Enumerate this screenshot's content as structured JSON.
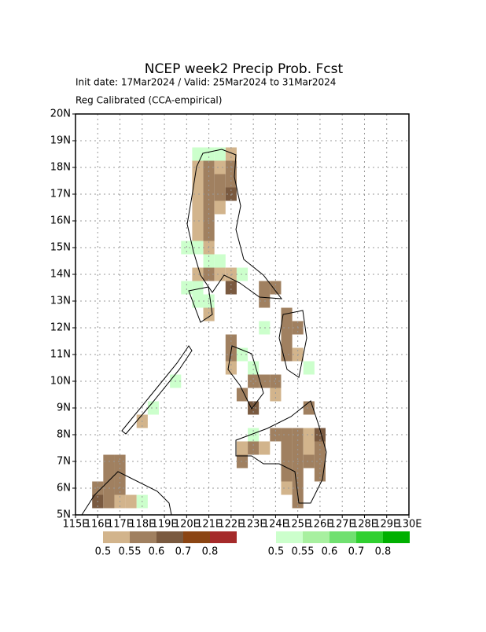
{
  "chart_data": {
    "type": "map",
    "title": "NCEP week2 Precip Prob. Fcst",
    "subtitle": "Init date: 17Mar2024 / Valid: 25Mar2024 to 31Mar2024",
    "note": "Reg Calibrated (CCA-empirical)",
    "xlim": [
      115,
      130
    ],
    "ylim": [
      5,
      20
    ],
    "xticks": [
      {
        "value": 115,
        "label": "115E"
      },
      {
        "value": 116,
        "label": "116E"
      },
      {
        "value": 117,
        "label": "117E"
      },
      {
        "value": 118,
        "label": "118E"
      },
      {
        "value": 119,
        "label": "119E"
      },
      {
        "value": 120,
        "label": "120E"
      },
      {
        "value": 121,
        "label": "121E"
      },
      {
        "value": 122,
        "label": "122E"
      },
      {
        "value": 123,
        "label": "123E"
      },
      {
        "value": 124,
        "label": "124E"
      },
      {
        "value": 125,
        "label": "125E"
      },
      {
        "value": 126,
        "label": "126E"
      },
      {
        "value": 127,
        "label": "127E"
      },
      {
        "value": 128,
        "label": "128E"
      },
      {
        "value": 129,
        "label": "129E"
      },
      {
        "value": 130,
        "label": "130E"
      }
    ],
    "yticks": [
      {
        "value": 5,
        "label": "5N"
      },
      {
        "value": 6,
        "label": "6N"
      },
      {
        "value": 7,
        "label": "7N"
      },
      {
        "value": 8,
        "label": "8N"
      },
      {
        "value": 9,
        "label": "9N"
      },
      {
        "value": 10,
        "label": "10N"
      },
      {
        "value": 11,
        "label": "11N"
      },
      {
        "value": 12,
        "label": "12N"
      },
      {
        "value": 13,
        "label": "13N"
      },
      {
        "value": 14,
        "label": "14N"
      },
      {
        "value": 15,
        "label": "15N"
      },
      {
        "value": 16,
        "label": "16N"
      },
      {
        "value": 17,
        "label": "17N"
      },
      {
        "value": 18,
        "label": "18N"
      },
      {
        "value": 19,
        "label": "19N"
      },
      {
        "value": 20,
        "label": "20N"
      }
    ],
    "grid": true,
    "dry_legend": {
      "levels": [
        0.5,
        0.55,
        0.6,
        0.7,
        0.8
      ],
      "colors": [
        "#d2b48c",
        "#a08060",
        "#7a5a40",
        "#8b4513",
        "#a52a2a"
      ]
    },
    "wet_legend": {
      "levels": [
        0.5,
        0.55,
        0.6,
        0.7,
        0.8
      ],
      "colors": [
        "#ccffcc",
        "#a8f0a0",
        "#70e070",
        "#30d030",
        "#00b000"
      ]
    },
    "dry_cells": [
      [
        122,
        18.5,
        0.5
      ],
      [
        120.5,
        18,
        0.5
      ],
      [
        121,
        18,
        0.55
      ],
      [
        121.5,
        18,
        0.5
      ],
      [
        122,
        18,
        0.55
      ],
      [
        120.5,
        17.5,
        0.5
      ],
      [
        121,
        17.5,
        0.55
      ],
      [
        121.5,
        17.5,
        0.55
      ],
      [
        122,
        17.5,
        0.55
      ],
      [
        120.5,
        17,
        0.5
      ],
      [
        121,
        17,
        0.55
      ],
      [
        121.5,
        17,
        0.55
      ],
      [
        122,
        17,
        0.6
      ],
      [
        120.5,
        16.5,
        0.5
      ],
      [
        121,
        16.5,
        0.55
      ],
      [
        121.5,
        16.5,
        0.5
      ],
      [
        120.5,
        16,
        0.5
      ],
      [
        121,
        16,
        0.55
      ],
      [
        120.5,
        15.5,
        0.5
      ],
      [
        121,
        15.5,
        0.55
      ],
      [
        121,
        15,
        0.5
      ],
      [
        120.5,
        14,
        0.5
      ],
      [
        121,
        14,
        0.55
      ],
      [
        121.5,
        14,
        0.5
      ],
      [
        122,
        14,
        0.5
      ],
      [
        122,
        13.5,
        0.6
      ],
      [
        123.5,
        13.5,
        0.55
      ],
      [
        124,
        13.5,
        0.55
      ],
      [
        123.5,
        13,
        0.55
      ],
      [
        121,
        12.5,
        0.5
      ],
      [
        124.5,
        12.5,
        0.55
      ],
      [
        124.5,
        12,
        0.55
      ],
      [
        125,
        12,
        0.55
      ],
      [
        122,
        11.5,
        0.55
      ],
      [
        122,
        11,
        0.55
      ],
      [
        122,
        10.5,
        0.5
      ],
      [
        124.5,
        11.5,
        0.55
      ],
      [
        124.5,
        11,
        0.55
      ],
      [
        125,
        11,
        0.5
      ],
      [
        123,
        10,
        0.55
      ],
      [
        123.5,
        10,
        0.55
      ],
      [
        124,
        10,
        0.55
      ],
      [
        122.5,
        9.5,
        0.55
      ],
      [
        124,
        9.5,
        0.5
      ],
      [
        123,
        9,
        0.6
      ],
      [
        125.5,
        9,
        0.55
      ],
      [
        124,
        8,
        0.55
      ],
      [
        124.5,
        8,
        0.55
      ],
      [
        125,
        8,
        0.55
      ],
      [
        125.5,
        8,
        0.5
      ],
      [
        126,
        8,
        0.6
      ],
      [
        122.5,
        7.5,
        0.5
      ],
      [
        123,
        7.5,
        0.55
      ],
      [
        123.5,
        7.5,
        0.5
      ],
      [
        124.5,
        7.5,
        0.55
      ],
      [
        125,
        7.5,
        0.55
      ],
      [
        125.5,
        7.5,
        0.5
      ],
      [
        126,
        7.5,
        0.55
      ],
      [
        122.5,
        7,
        0.55
      ],
      [
        124.5,
        7,
        0.55
      ],
      [
        125,
        7,
        0.55
      ],
      [
        125.5,
        7,
        0.55
      ],
      [
        126,
        7,
        0.55
      ],
      [
        124.5,
        6.5,
        0.55
      ],
      [
        125,
        6.5,
        0.55
      ],
      [
        126,
        6.5,
        0.55
      ],
      [
        124.5,
        6,
        0.5
      ],
      [
        125,
        6,
        0.55
      ],
      [
        125,
        5.5,
        0.55
      ],
      [
        118,
        8.5,
        0.5
      ],
      [
        116.5,
        7,
        0.55
      ],
      [
        117,
        7,
        0.55
      ],
      [
        116.5,
        6.5,
        0.55
      ],
      [
        117,
        6.5,
        0.55
      ],
      [
        116,
        6,
        0.55
      ],
      [
        116.5,
        6,
        0.55
      ],
      [
        117,
        6,
        0.55
      ],
      [
        116,
        5.5,
        0.6
      ],
      [
        116.5,
        5.5,
        0.55
      ],
      [
        117,
        5.5,
        0.5
      ],
      [
        117.5,
        5.5,
        0.5
      ]
    ],
    "wet_cells": [
      [
        120.5,
        18.5,
        0.5
      ],
      [
        121,
        18.5,
        0.5
      ],
      [
        121.5,
        18.5,
        0.5
      ],
      [
        120,
        15,
        0.5
      ],
      [
        120.5,
        15,
        0.5
      ],
      [
        121.5,
        14.5,
        0.5
      ],
      [
        121,
        14.5,
        0.5
      ],
      [
        122.5,
        14,
        0.5
      ],
      [
        120,
        13.5,
        0.5
      ],
      [
        120.5,
        13.5,
        0.5
      ],
      [
        120.5,
        13,
        0.5
      ],
      [
        121,
        13,
        0.5
      ],
      [
        123.5,
        12,
        0.5
      ],
      [
        122.5,
        11,
        0.5
      ],
      [
        123,
        10.5,
        0.5
      ],
      [
        125.5,
        10.5,
        0.5
      ],
      [
        123,
        8,
        0.5
      ],
      [
        118.5,
        9,
        0.5
      ],
      [
        119.5,
        10,
        0.5
      ],
      [
        118,
        5.5,
        0.5
      ]
    ]
  }
}
